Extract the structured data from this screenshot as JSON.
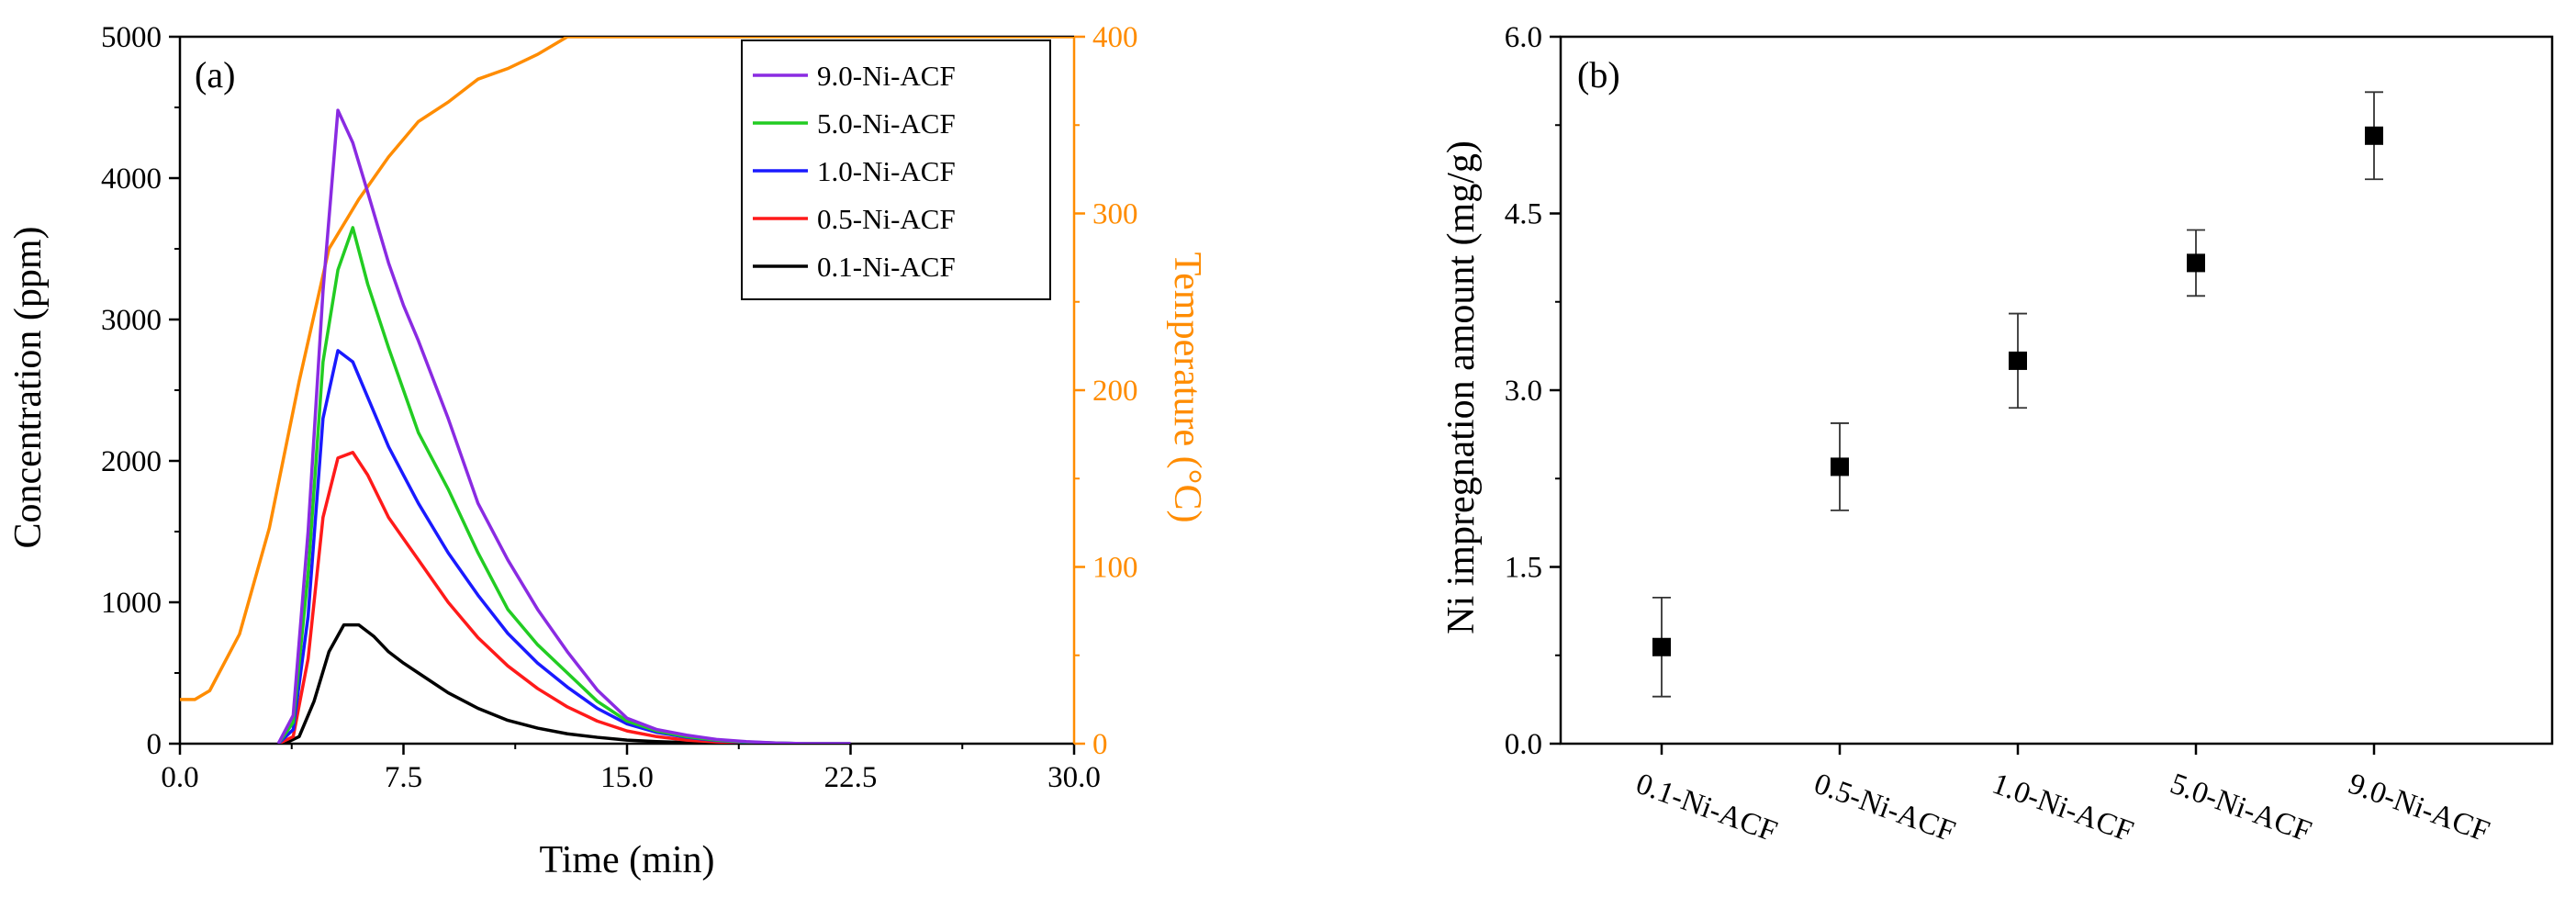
{
  "chart_data": [
    {
      "type": "line",
      "panel_label": "(a)",
      "xlabel": "Time (min)",
      "ylabel": "Concentration (ppm)",
      "y2label": "Temperature (°C)",
      "xlim": [
        0,
        30
      ],
      "ylim": [
        0,
        5000
      ],
      "y2lim": [
        0,
        400
      ],
      "xticks": [
        "0.0",
        "7.5",
        "15.0",
        "22.5",
        "30.0"
      ],
      "yticks": [
        "0",
        "1000",
        "2000",
        "3000",
        "4000",
        "5000"
      ],
      "y2ticks": [
        "0",
        "100",
        "200",
        "300",
        "400"
      ],
      "legend_position": "top-right",
      "series": [
        {
          "name": "9.0-Ni-ACF",
          "color": "#8a2be2",
          "x": [
            3.3,
            3.8,
            4.3,
            4.8,
            5.3,
            5.8,
            6.3,
            7.0,
            7.5,
            8.0,
            9.0,
            10.0,
            11.0,
            12.0,
            13.0,
            14.0,
            15.0,
            16.0,
            17.0,
            18.0,
            19.0,
            20.0,
            21.0,
            22.5
          ],
          "y": [
            0,
            200,
            1500,
            3200,
            4480,
            4250,
            3900,
            3400,
            3100,
            2850,
            2300,
            1700,
            1300,
            950,
            650,
            380,
            180,
            100,
            60,
            30,
            15,
            5,
            0,
            0
          ]
        },
        {
          "name": "5.0-Ni-ACF",
          "color": "#22cc22",
          "x": [
            3.3,
            3.8,
            4.3,
            4.8,
            5.3,
            5.8,
            6.3,
            7.0,
            7.5,
            8.0,
            9.0,
            10.0,
            11.0,
            12.0,
            13.0,
            14.0,
            15.0,
            16.0,
            17.0,
            18.0,
            19.0,
            20.0,
            21.0,
            22.5
          ],
          "y": [
            0,
            150,
            1200,
            2700,
            3350,
            3650,
            3250,
            2800,
            2500,
            2200,
            1800,
            1350,
            950,
            700,
            500,
            300,
            160,
            90,
            50,
            25,
            12,
            5,
            0,
            0
          ]
        },
        {
          "name": "1.0-Ni-ACF",
          "color": "#1a1aff",
          "x": [
            3.3,
            3.8,
            4.3,
            4.8,
            5.3,
            5.8,
            6.3,
            7.0,
            7.5,
            8.0,
            9.0,
            10.0,
            11.0,
            12.0,
            13.0,
            14.0,
            15.0,
            16.0,
            17.0,
            18.0,
            19.0,
            20.0,
            21.0,
            22.5
          ],
          "y": [
            0,
            100,
            900,
            2300,
            2780,
            2700,
            2450,
            2100,
            1900,
            1700,
            1350,
            1050,
            780,
            570,
            400,
            250,
            140,
            80,
            45,
            22,
            10,
            4,
            0,
            0
          ]
        },
        {
          "name": "0.5-Ni-ACF",
          "color": "#ff1a1a",
          "x": [
            3.3,
            3.8,
            4.3,
            4.8,
            5.3,
            5.8,
            6.3,
            7.0,
            7.5,
            8.0,
            9.0,
            10.0,
            11.0,
            12.0,
            13.0,
            14.0,
            15.0,
            16.0,
            17.0,
            18.0,
            19.0,
            20.0,
            21.0,
            22.5
          ],
          "y": [
            0,
            50,
            600,
            1600,
            2020,
            2060,
            1900,
            1600,
            1450,
            1300,
            1000,
            750,
            550,
            390,
            260,
            160,
            90,
            50,
            25,
            12,
            6,
            2,
            0,
            0
          ]
        },
        {
          "name": "0.1-Ni-ACF",
          "color": "#000000",
          "x": [
            3.5,
            4.0,
            4.5,
            5.0,
            5.5,
            6.0,
            6.5,
            7.0,
            7.5,
            8.0,
            9.0,
            10.0,
            11.0,
            12.0,
            13.0,
            14.0,
            15.0,
            16.0,
            17.0,
            18.0,
            19.0,
            20.0,
            21.0,
            22.5
          ],
          "y": [
            0,
            50,
            300,
            650,
            840,
            840,
            760,
            650,
            570,
            500,
            360,
            250,
            165,
            110,
            70,
            45,
            25,
            15,
            8,
            4,
            2,
            1,
            0,
            0
          ]
        }
      ],
      "temperature_series": {
        "name": "Temperature",
        "axis": "right",
        "color": "#ff8c00",
        "x": [
          0,
          0.5,
          1.0,
          2.0,
          3.0,
          4.0,
          5.0,
          6.0,
          7.0,
          8.0,
          9.0,
          10.0,
          11.0,
          12.0,
          13.0,
          14.0,
          20.0,
          30.0
        ],
        "y": [
          25,
          25,
          30,
          62,
          122,
          205,
          280,
          308,
          332,
          352,
          363,
          376,
          382,
          390,
          400,
          400,
          400,
          400
        ]
      }
    },
    {
      "type": "scatter",
      "panel_label": "(b)",
      "xlabel": "",
      "ylabel": "Ni impregnation amount (mg/g)",
      "ylim": [
        0,
        6.0
      ],
      "yticks": [
        "0.0",
        "1.5",
        "3.0",
        "4.5",
        "6.0"
      ],
      "categories": [
        "0.1-Ni-ACF",
        "0.5-Ni-ACF",
        "1.0-Ni-ACF",
        "5.0-Ni-ACF",
        "9.0-Ni-ACF"
      ],
      "values": [
        0.82,
        2.35,
        3.25,
        4.08,
        5.16
      ],
      "errors": [
        0.42,
        0.37,
        0.4,
        0.28,
        0.37
      ]
    }
  ]
}
